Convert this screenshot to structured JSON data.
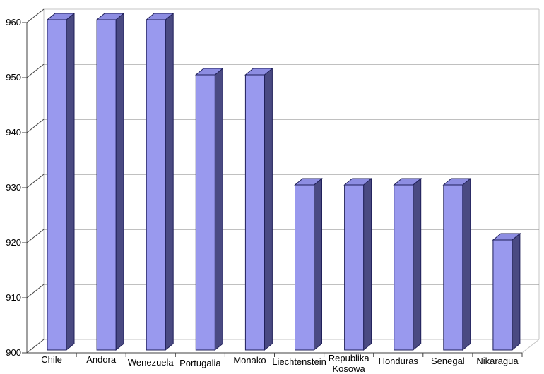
{
  "chart_data": {
    "type": "bar",
    "style": "3d-column",
    "title": "",
    "xlabel": "",
    "ylabel": "",
    "categories": [
      "Chile",
      "Andora",
      "Wenezuela",
      "Portugalia",
      "Monako",
      "Liechtenstein",
      "Republika Kosowa",
      "Honduras",
      "Senegal",
      "Nikaragua"
    ],
    "category_label_lines": [
      [
        "Chile"
      ],
      [
        "Andora"
      ],
      [
        "Wenezuela"
      ],
      [
        "Portugalia"
      ],
      [
        "Monako"
      ],
      [
        "Liechtenstein"
      ],
      [
        "Republika",
        "Kosowa"
      ],
      [
        "Honduras"
      ],
      [
        "Senegal"
      ],
      [
        "Nikaragua"
      ]
    ],
    "values": [
      960,
      960,
      960,
      950,
      950,
      930,
      930,
      930,
      930,
      920
    ],
    "ylim": [
      900,
      960
    ],
    "ytick_step": 10,
    "ytick_labels": [
      "900",
      "910",
      "920",
      "930",
      "940",
      "950",
      "960"
    ],
    "grid": true,
    "legend": false,
    "colors": {
      "background": "#FFFFFF",
      "bar_front": "#9999EE",
      "bar_top": "#8D8DE2",
      "bar_side": "#4A4A82",
      "bar_outline": "#20205A",
      "gridline": "#808080",
      "wall_frame": "#C4C4C4",
      "axis": "#404040",
      "text": "#000000"
    }
  }
}
